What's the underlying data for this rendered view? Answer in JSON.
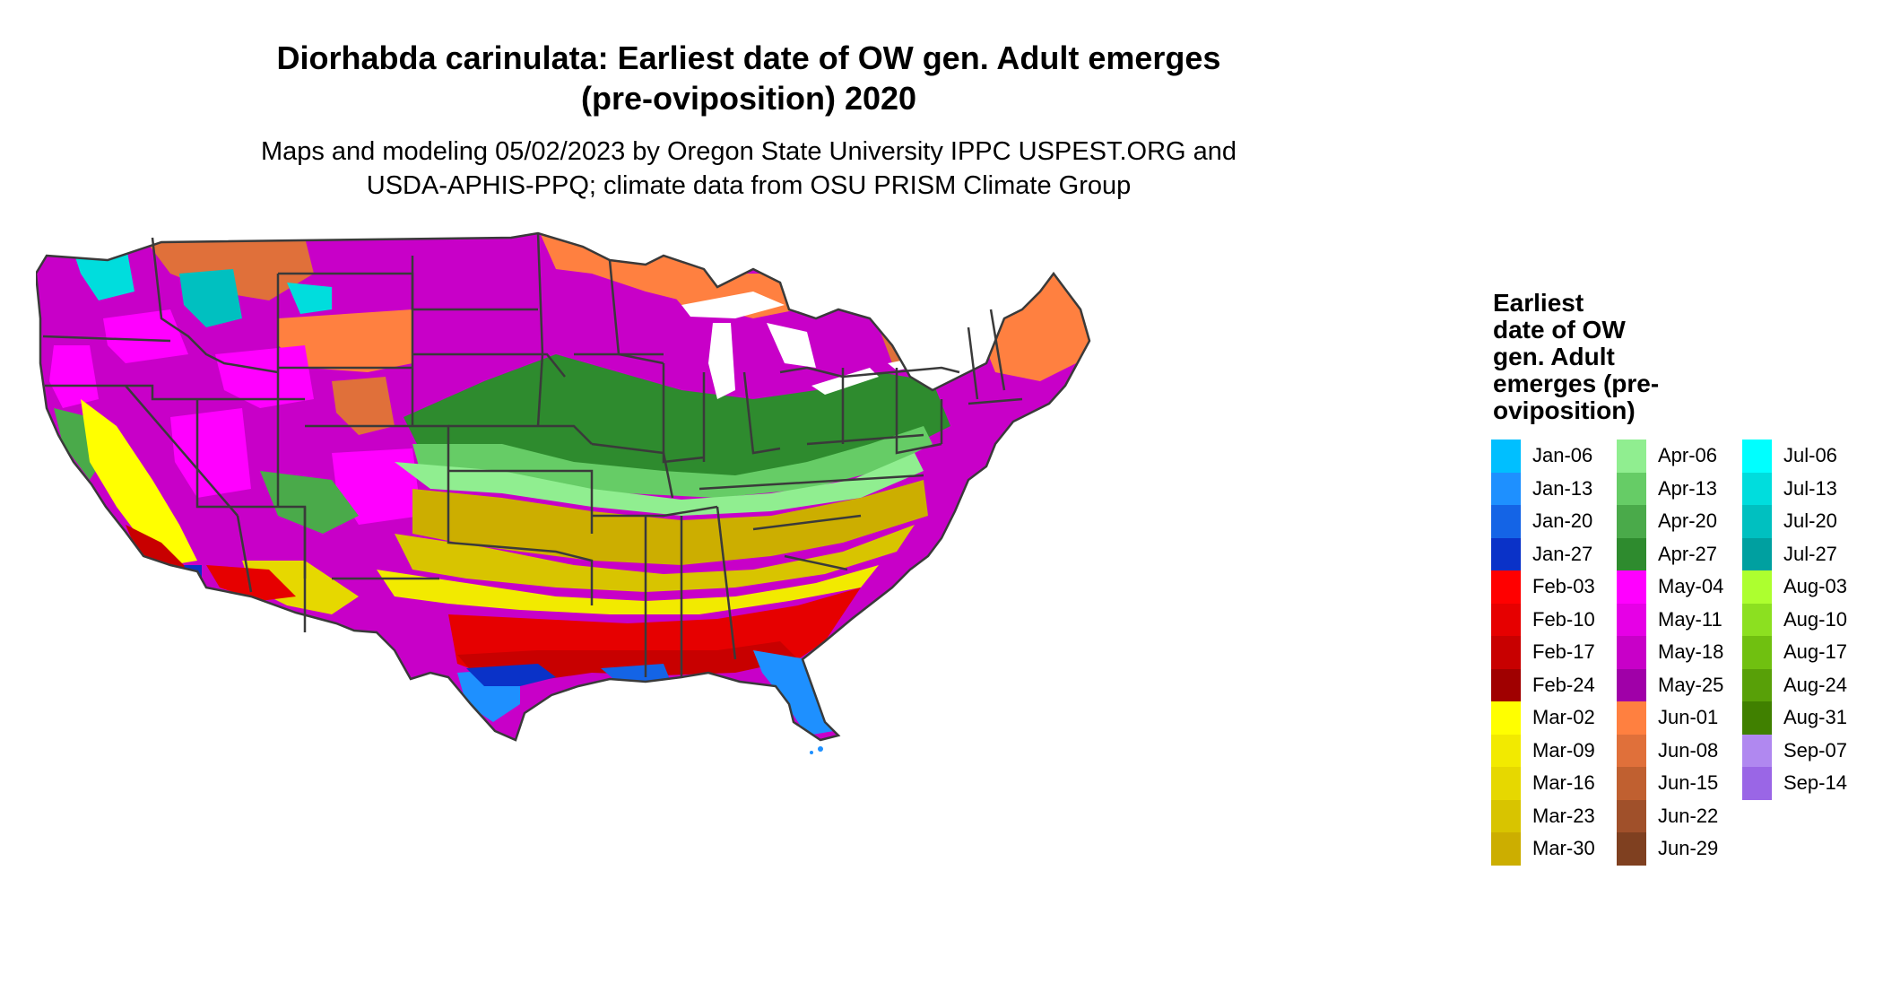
{
  "title_line1": "Diorhabda carinulata: Earliest date of OW gen. Adult emerges",
  "title_line2": "(pre-oviposition) 2020",
  "subtitle_line1": "Maps and modeling 05/02/2023 by Oregon State University IPPC USPEST.ORG and",
  "subtitle_line2": "USDA-APHIS-PPQ; climate data from OSU PRISM Climate Group",
  "legend": {
    "title_lines": [
      "Earliest",
      "date of OW",
      "gen. Adult",
      "emerges (pre-",
      "oviposition)"
    ],
    "items": [
      {
        "label": "Jan-06",
        "color": "#00BFFF"
      },
      {
        "label": "Jan-13",
        "color": "#1E90FF"
      },
      {
        "label": "Jan-20",
        "color": "#1464E6"
      },
      {
        "label": "Jan-27",
        "color": "#0A32C8"
      },
      {
        "label": "Feb-03",
        "color": "#FF0000"
      },
      {
        "label": "Feb-10",
        "color": "#E60000"
      },
      {
        "label": "Feb-17",
        "color": "#C80000"
      },
      {
        "label": "Feb-24",
        "color": "#A00000"
      },
      {
        "label": "Mar-02",
        "color": "#FFFF00"
      },
      {
        "label": "Mar-09",
        "color": "#F2EA00"
      },
      {
        "label": "Mar-16",
        "color": "#E6D800"
      },
      {
        "label": "Mar-23",
        "color": "#D8C400"
      },
      {
        "label": "Mar-30",
        "color": "#CCAE00"
      },
      {
        "label": "Apr-06",
        "color": "#90EE90"
      },
      {
        "label": "Apr-13",
        "color": "#66CC66"
      },
      {
        "label": "Apr-20",
        "color": "#4AAA4A"
      },
      {
        "label": "Apr-27",
        "color": "#2E8B2E"
      },
      {
        "label": "May-04",
        "color": "#FF00FF"
      },
      {
        "label": "May-11",
        "color": "#E600E6"
      },
      {
        "label": "May-18",
        "color": "#C800C8"
      },
      {
        "label": "May-25",
        "color": "#A000A8"
      },
      {
        "label": "Jun-01",
        "color": "#FF8040"
      },
      {
        "label": "Jun-08",
        "color": "#E0703A"
      },
      {
        "label": "Jun-15",
        "color": "#C06030"
      },
      {
        "label": "Jun-22",
        "color": "#A0502A"
      },
      {
        "label": "Jun-29",
        "color": "#7F4020"
      },
      {
        "label": "Jul-06",
        "color": "#00FFFF"
      },
      {
        "label": "Jul-13",
        "color": "#00DDDD"
      },
      {
        "label": "Jul-20",
        "color": "#00C0C0"
      },
      {
        "label": "Jul-27",
        "color": "#00A0A0"
      },
      {
        "label": "Aug-03",
        "color": "#ADFF2F"
      },
      {
        "label": "Aug-10",
        "color": "#8CE020"
      },
      {
        "label": "Aug-17",
        "color": "#70C010"
      },
      {
        "label": "Aug-24",
        "color": "#58A008"
      },
      {
        "label": "Aug-31",
        "color": "#408000"
      },
      {
        "label": "Sep-07",
        "color": "#B088F0"
      },
      {
        "label": "Sep-14",
        "color": "#9A66E6"
      }
    ]
  }
}
